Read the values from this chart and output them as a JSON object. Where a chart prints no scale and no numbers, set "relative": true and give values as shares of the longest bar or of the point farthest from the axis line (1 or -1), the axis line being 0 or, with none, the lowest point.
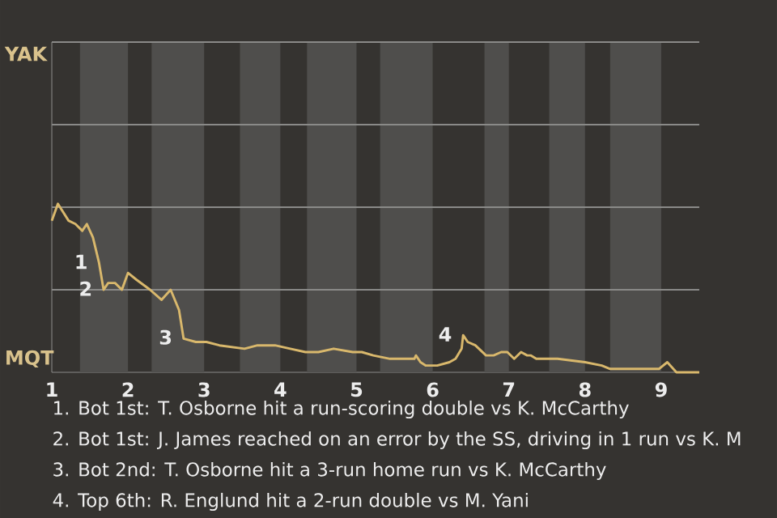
{
  "chart_data": {
    "type": "line",
    "relative": true,
    "xlim": [
      1,
      9.5
    ],
    "xticks": [
      1,
      2,
      3,
      4,
      5,
      6,
      7,
      8,
      9
    ],
    "marker": "none",
    "line_style": "solid",
    "ref_lines": [
      {
        "axis": "y",
        "value": 0.49,
        "color": "#8a8a88"
      },
      {
        "axis": "y",
        "value": 0.98,
        "color": "#8a8a88"
      },
      {
        "axis": "y",
        "value": 1.47,
        "color": "#8a8a88"
      },
      {
        "axis": "y",
        "value": 1.96,
        "color": "#8a8a88"
      }
    ],
    "series": [
      {
        "color": "#d9b86c",
        "x": [
          1,
          1.08,
          1.22,
          1.31,
          1.4,
          1.46,
          1.54,
          1.62,
          1.68,
          1.74,
          1.83,
          1.92,
          2,
          2.11,
          2.29,
          2.44,
          2.56,
          2.67,
          2.73,
          2.89,
          3.03,
          3.2,
          3.53,
          3.7,
          3.93,
          4.13,
          4.33,
          4.5,
          4.7,
          4.95,
          5.07,
          5.22,
          5.44,
          5.76,
          5.78,
          5.84,
          5.91,
          6.06,
          6.22,
          6.3,
          6.38,
          6.4,
          6.46,
          6.56,
          6.7,
          6.8,
          6.9,
          6.98,
          7.07,
          7.16,
          7.24,
          7.29,
          7.36,
          7.44,
          7.64,
          8,
          8.22,
          8.33,
          8.97,
          9.08,
          9.2,
          9.5
        ],
        "values": [
          0.9,
          1,
          0.9,
          0.88,
          0.84,
          0.88,
          0.8,
          0.65,
          0.49,
          0.53,
          0.53,
          0.49,
          0.59,
          0.55,
          0.49,
          0.43,
          0.49,
          0.37,
          0.2,
          0.18,
          0.18,
          0.16,
          0.14,
          0.16,
          0.16,
          0.14,
          0.12,
          0.12,
          0.14,
          0.12,
          0.12,
          0.1,
          0.08,
          0.08,
          0.1,
          0.06,
          0.04,
          0.04,
          0.06,
          0.08,
          0.14,
          0.22,
          0.18,
          0.16,
          0.1,
          0.1,
          0.12,
          0.12,
          0.08,
          0.12,
          0.1,
          0.1,
          0.08,
          0.08,
          0.08,
          0.06,
          0.04,
          0.02,
          0.02,
          0.06,
          0,
          0
        ]
      }
    ],
    "bands": [
      {
        "axis": "x",
        "from": 1.37,
        "to": 2,
        "color": "#4f4e4c"
      },
      {
        "axis": "x",
        "from": 2.31,
        "to": 3,
        "color": "#4f4e4c"
      },
      {
        "axis": "x",
        "from": 3.47,
        "to": 4,
        "color": "#4f4e4c"
      },
      {
        "axis": "x",
        "from": 4.35,
        "to": 5,
        "color": "#4f4e4c"
      },
      {
        "axis": "x",
        "from": 5.31,
        "to": 6,
        "color": "#4f4e4c"
      },
      {
        "axis": "x",
        "from": 6.68,
        "to": 7,
        "color": "#4f4e4c"
      },
      {
        "axis": "x",
        "from": 7.53,
        "to": 8,
        "color": "#4f4e4c"
      },
      {
        "axis": "x",
        "from": 8.33,
        "to": 9,
        "color": "#4f4e4c"
      }
    ],
    "annotations": [
      "YAK",
      "MQT",
      {
        "text": "1",
        "x": 1.62,
        "y": 0.65
      },
      {
        "text": "2",
        "x": 1.68,
        "y": 0.49
      },
      {
        "text": "3",
        "x": 2.73,
        "y": 0.2
      },
      {
        "text": "4",
        "x": 6.4,
        "y": 0.22
      },
      "1. Bot 1st: T. Osborne hit a run-scoring double vs K. McCarthy",
      "2. Bot 1st: J. James reached on an error by the SS, driving in 1 run vs K. M",
      "3. Bot 2nd: T. Osborne hit a 3-run home run vs K. McCarthy",
      "4. Top 6th: R. Englund hit a 2-run double vs M. Yani"
    ]
  }
}
